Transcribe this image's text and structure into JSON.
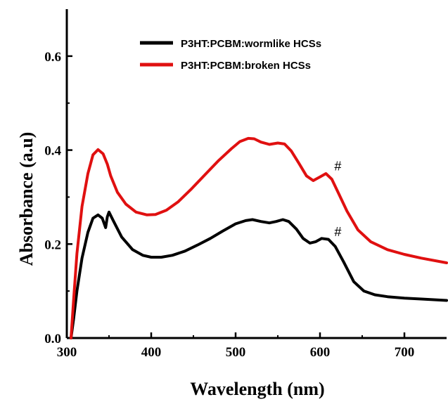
{
  "chart_data": {
    "type": "line",
    "xlabel": "Wavelength (nm)",
    "ylabel": "Absorbance (a.u)",
    "xlim": [
      300,
      750
    ],
    "ylim": [
      0,
      0.7
    ],
    "xticks": [
      300,
      400,
      500,
      600,
      700
    ],
    "yticks": [
      0.0,
      0.2,
      0.4,
      0.6
    ],
    "xtick_labels": [
      "300",
      "400",
      "500",
      "600",
      "700"
    ],
    "ytick_labels": [
      "0.0",
      "0.2",
      "0.4",
      "0.6"
    ],
    "grid": false,
    "legend_position": "top-center",
    "series": [
      {
        "name": "P3HT:PCBM:wormlike HCSs",
        "color": "#000000",
        "points": [
          [
            305,
            0
          ],
          [
            308,
            0.04
          ],
          [
            312,
            0.1
          ],
          [
            318,
            0.17
          ],
          [
            325,
            0.225
          ],
          [
            331,
            0.255
          ],
          [
            337,
            0.262
          ],
          [
            342,
            0.255
          ],
          [
            346,
            0.235
          ],
          [
            348,
            0.258
          ],
          [
            350,
            0.268
          ],
          [
            355,
            0.25
          ],
          [
            365,
            0.215
          ],
          [
            378,
            0.188
          ],
          [
            390,
            0.176
          ],
          [
            400,
            0.172
          ],
          [
            412,
            0.172
          ],
          [
            425,
            0.176
          ],
          [
            440,
            0.185
          ],
          [
            455,
            0.198
          ],
          [
            470,
            0.212
          ],
          [
            485,
            0.228
          ],
          [
            500,
            0.243
          ],
          [
            512,
            0.25
          ],
          [
            520,
            0.252
          ],
          [
            530,
            0.248
          ],
          [
            540,
            0.245
          ],
          [
            548,
            0.248
          ],
          [
            556,
            0.252
          ],
          [
            563,
            0.248
          ],
          [
            572,
            0.232
          ],
          [
            580,
            0.212
          ],
          [
            588,
            0.202
          ],
          [
            595,
            0.205
          ],
          [
            602,
            0.212
          ],
          [
            610,
            0.21
          ],
          [
            618,
            0.195
          ],
          [
            628,
            0.162
          ],
          [
            640,
            0.12
          ],
          [
            652,
            0.1
          ],
          [
            665,
            0.092
          ],
          [
            680,
            0.088
          ],
          [
            700,
            0.085
          ],
          [
            720,
            0.083
          ],
          [
            750,
            0.08
          ]
        ]
      },
      {
        "name": "P3HT:PCBM:broken HCSs",
        "color": "#e01010",
        "points": [
          [
            305,
            0
          ],
          [
            308,
            0.08
          ],
          [
            312,
            0.18
          ],
          [
            318,
            0.28
          ],
          [
            325,
            0.35
          ],
          [
            331,
            0.39
          ],
          [
            337,
            0.401
          ],
          [
            343,
            0.392
          ],
          [
            348,
            0.37
          ],
          [
            352,
            0.345
          ],
          [
            360,
            0.31
          ],
          [
            370,
            0.285
          ],
          [
            382,
            0.268
          ],
          [
            395,
            0.262
          ],
          [
            405,
            0.263
          ],
          [
            418,
            0.272
          ],
          [
            432,
            0.29
          ],
          [
            448,
            0.318
          ],
          [
            465,
            0.35
          ],
          [
            480,
            0.378
          ],
          [
            495,
            0.403
          ],
          [
            505,
            0.418
          ],
          [
            515,
            0.425
          ],
          [
            522,
            0.424
          ],
          [
            530,
            0.417
          ],
          [
            540,
            0.412
          ],
          [
            550,
            0.415
          ],
          [
            558,
            0.413
          ],
          [
            566,
            0.398
          ],
          [
            575,
            0.372
          ],
          [
            584,
            0.345
          ],
          [
            592,
            0.335
          ],
          [
            600,
            0.343
          ],
          [
            607,
            0.35
          ],
          [
            614,
            0.338
          ],
          [
            622,
            0.308
          ],
          [
            632,
            0.27
          ],
          [
            645,
            0.23
          ],
          [
            660,
            0.205
          ],
          [
            680,
            0.188
          ],
          [
            700,
            0.178
          ],
          [
            720,
            0.17
          ],
          [
            750,
            0.16
          ]
        ]
      }
    ],
    "annotations": [
      {
        "text": "#",
        "x": 607,
        "y": 0.36
      },
      {
        "text": "#",
        "x": 607,
        "y": 0.22
      }
    ]
  }
}
